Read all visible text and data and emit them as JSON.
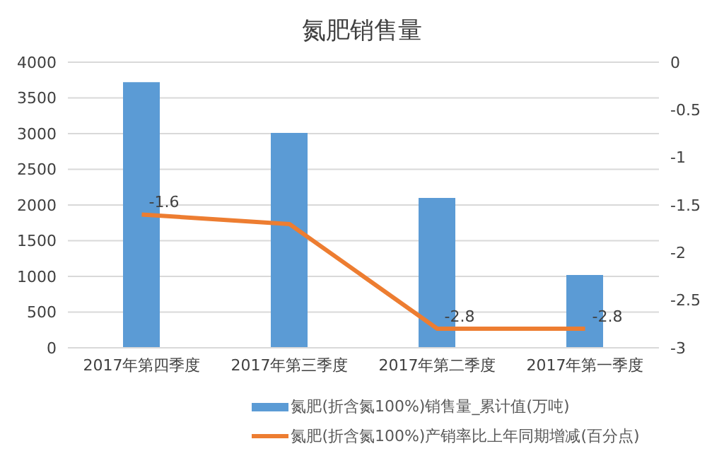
{
  "chart_data": {
    "type": "bar",
    "title": "氮肥销售量",
    "categories": [
      "2017年第四季度",
      "2017年第三季度",
      "2017年第二季度",
      "2017年第一季度"
    ],
    "series": [
      {
        "name": "氮肥(折含氮100%)销售量_累计值(万吨)",
        "color": "#5b9bd5",
        "values": [
          3720,
          3010,
          2100,
          1020
        ]
      },
      {
        "name": "氮肥(折含氮100%)产销率比上年同期增减(百分点)",
        "type": "line",
        "axis": "y2",
        "color": "#ed7d31",
        "values": [
          -1.6,
          -1.7,
          -2.8,
          -2.8
        ],
        "value_labels": [
          "-1.6",
          null,
          "-2.8",
          "-2.8"
        ]
      }
    ],
    "ylim": [
      0,
      4000
    ],
    "yticks": [
      0,
      500,
      1000,
      1500,
      2000,
      2500,
      3000,
      3500,
      4000
    ],
    "y2lim": [
      -3,
      0
    ],
    "y2ticks": [
      -3,
      -2.5,
      -2,
      -1.5,
      -1,
      -0.5,
      0
    ],
    "grid": "y",
    "legend": "bottom",
    "marker": "none"
  }
}
